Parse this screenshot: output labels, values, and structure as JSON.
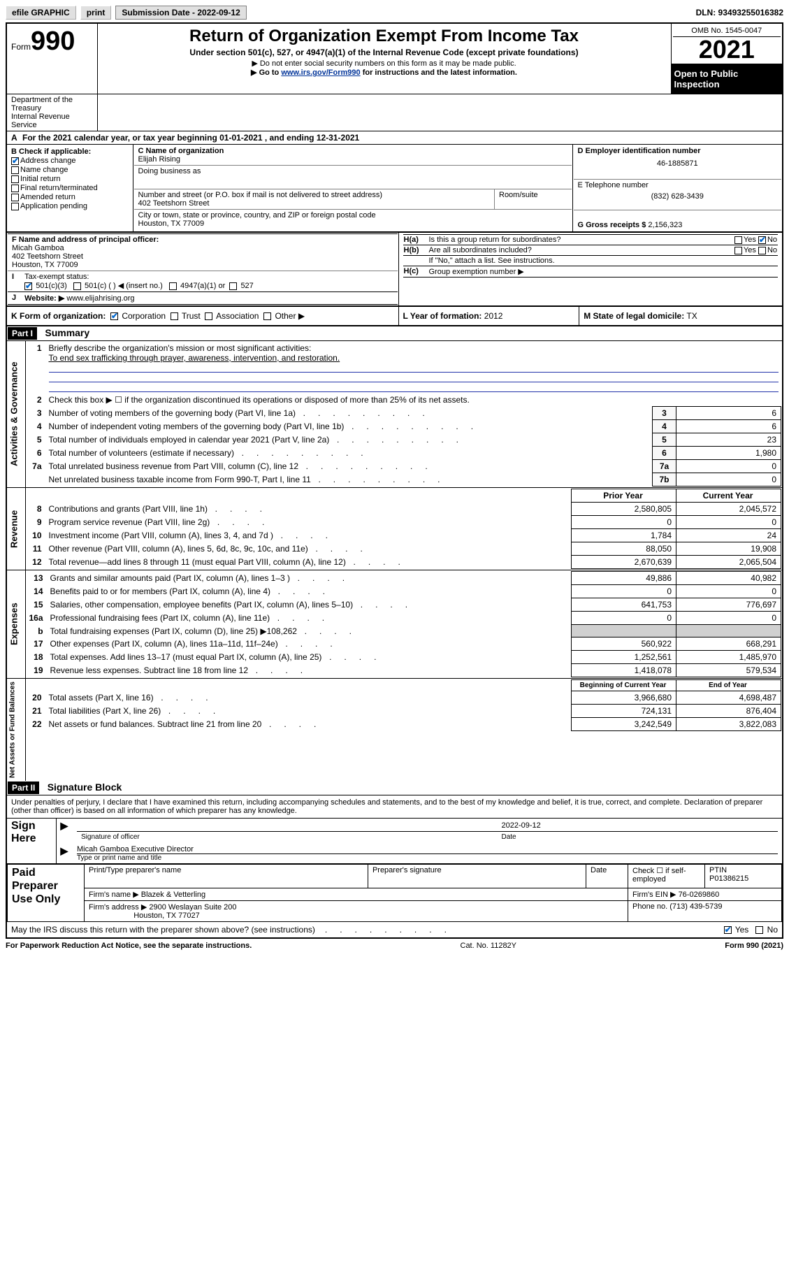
{
  "topbar": {
    "efile": "efile GRAPHIC",
    "print": "print",
    "subdate_label": "Submission Date - 2022-09-12",
    "dln": "DLN: 93493255016382"
  },
  "header": {
    "form_label": "Form",
    "form_num": "990",
    "title": "Return of Organization Exempt From Income Tax",
    "subtitle": "Under section 501(c), 527, or 4947(a)(1) of the Internal Revenue Code (except private foundations)",
    "note1": "▶ Do not enter social security numbers on this form as it may be made public.",
    "note2_pre": "▶ Go to ",
    "note2_link": "www.irs.gov/Form990",
    "note2_post": " for instructions and the latest information.",
    "dept": "Department of the Treasury\nInternal Revenue Service",
    "omb": "OMB No. 1545-0047",
    "year": "2021",
    "inspect": "Open to Public Inspection"
  },
  "rowA": "For the 2021 calendar year, or tax year beginning 01-01-2021    , and ending 12-31-2021",
  "B": {
    "hdr": "B Check if applicable:",
    "items": [
      {
        "label": "Address change",
        "checked": true
      },
      {
        "label": "Name change",
        "checked": false
      },
      {
        "label": "Initial return",
        "checked": false
      },
      {
        "label": "Final return/terminated",
        "checked": false
      },
      {
        "label": "Amended return",
        "checked": false
      },
      {
        "label": "Application pending",
        "checked": false
      }
    ]
  },
  "C": {
    "name_hdr": "C Name of organization",
    "name": "Elijah Rising",
    "dba_hdr": "Doing business as",
    "dba": "",
    "street_hdr": "Number and street (or P.O. box if mail is not delivered to street address)",
    "room_hdr": "Room/suite",
    "street": "402 Teetshorn Street",
    "city_hdr": "City or town, state or province, country, and ZIP or foreign postal code",
    "city": "Houston, TX  77009"
  },
  "D": {
    "hdr": "D Employer identification number",
    "val": "46-1885871"
  },
  "E": {
    "hdr": "E Telephone number",
    "val": "(832) 628-3439"
  },
  "G": {
    "hdr": "G Gross receipts $",
    "val": "2,156,323"
  },
  "F": {
    "hdr": "F  Name and address of principal officer:",
    "name": "Micah Gamboa",
    "street": "402 Teetshorn Street",
    "city": "Houston, TX  77009"
  },
  "H": {
    "a": "Is this a group return for subordinates?",
    "b": "Are all subordinates included?",
    "b_note": "If \"No,\" attach a list. See instructions.",
    "c": "Group exemption number ▶",
    "yes": "Yes",
    "no": "No"
  },
  "I": {
    "label": "Tax-exempt status:",
    "opts": [
      "501(c)(3)",
      "501(c) (  ) ◀ (insert no.)",
      "4947(a)(1) or",
      "527"
    ]
  },
  "J": {
    "label": "Website: ▶",
    "val": "www.elijahrising.org"
  },
  "K": {
    "label": "K Form of organization:",
    "opts": [
      "Corporation",
      "Trust",
      "Association",
      "Other ▶"
    ]
  },
  "L": {
    "label": "L Year of formation:",
    "val": "2012"
  },
  "M": {
    "label": "M State of legal domicile:",
    "val": "TX"
  },
  "part1": {
    "hdr": "Part I",
    "title": "Summary"
  },
  "summary": {
    "q1": "Briefly describe the organization's mission or most significant activities:",
    "mission": "To end sex trafficking through prayer, awareness, intervention, and restoration.",
    "q2": "Check this box ▶ ☐  if the organization discontinued its operations or disposed of more than 25% of its net assets.",
    "side1": "Activities & Governance",
    "side2": "Revenue",
    "side3": "Expenses",
    "side4": "Net Assets or Fund Balances",
    "rows_gov": [
      {
        "n": "3",
        "t": "Number of voting members of the governing body (Part VI, line 1a)",
        "box": "3",
        "v": "6"
      },
      {
        "n": "4",
        "t": "Number of independent voting members of the governing body (Part VI, line 1b)",
        "box": "4",
        "v": "6"
      },
      {
        "n": "5",
        "t": "Total number of individuals employed in calendar year 2021 (Part V, line 2a)",
        "box": "5",
        "v": "23"
      },
      {
        "n": "6",
        "t": "Total number of volunteers (estimate if necessary)",
        "box": "6",
        "v": "1,980"
      },
      {
        "n": "7a",
        "t": "Total unrelated business revenue from Part VIII, column (C), line 12",
        "box": "7a",
        "v": "0"
      },
      {
        "n": "",
        "t": "Net unrelated business taxable income from Form 990-T, Part I, line 11",
        "box": "7b",
        "v": "0"
      }
    ],
    "col_prior": "Prior Year",
    "col_current": "Current Year",
    "rows_rev": [
      {
        "n": "8",
        "t": "Contributions and grants (Part VIII, line 1h)",
        "p": "2,580,805",
        "c": "2,045,572"
      },
      {
        "n": "9",
        "t": "Program service revenue (Part VIII, line 2g)",
        "p": "0",
        "c": "0"
      },
      {
        "n": "10",
        "t": "Investment income (Part VIII, column (A), lines 3, 4, and 7d )",
        "p": "1,784",
        "c": "24"
      },
      {
        "n": "11",
        "t": "Other revenue (Part VIII, column (A), lines 5, 6d, 8c, 9c, 10c, and 11e)",
        "p": "88,050",
        "c": "19,908"
      },
      {
        "n": "12",
        "t": "Total revenue—add lines 8 through 11 (must equal Part VIII, column (A), line 12)",
        "p": "2,670,639",
        "c": "2,065,504"
      }
    ],
    "rows_exp": [
      {
        "n": "13",
        "t": "Grants and similar amounts paid (Part IX, column (A), lines 1–3 )",
        "p": "49,886",
        "c": "40,982"
      },
      {
        "n": "14",
        "t": "Benefits paid to or for members (Part IX, column (A), line 4)",
        "p": "0",
        "c": "0"
      },
      {
        "n": "15",
        "t": "Salaries, other compensation, employee benefits (Part IX, column (A), lines 5–10)",
        "p": "641,753",
        "c": "776,697"
      },
      {
        "n": "16a",
        "t": "Professional fundraising fees (Part IX, column (A), line 11e)",
        "p": "0",
        "c": "0"
      },
      {
        "n": "b",
        "t": "Total fundraising expenses (Part IX, column (D), line 25) ▶108,262",
        "p": "",
        "c": "",
        "shade": true
      },
      {
        "n": "17",
        "t": "Other expenses (Part IX, column (A), lines 11a–11d, 11f–24e)",
        "p": "560,922",
        "c": "668,291"
      },
      {
        "n": "18",
        "t": "Total expenses. Add lines 13–17 (must equal Part IX, column (A), line 25)",
        "p": "1,252,561",
        "c": "1,485,970"
      },
      {
        "n": "19",
        "t": "Revenue less expenses. Subtract line 18 from line 12",
        "p": "1,418,078",
        "c": "579,534"
      }
    ],
    "col_begin": "Beginning of Current Year",
    "col_end": "End of Year",
    "rows_net": [
      {
        "n": "20",
        "t": "Total assets (Part X, line 16)",
        "p": "3,966,680",
        "c": "4,698,487"
      },
      {
        "n": "21",
        "t": "Total liabilities (Part X, line 26)",
        "p": "724,131",
        "c": "876,404"
      },
      {
        "n": "22",
        "t": "Net assets or fund balances. Subtract line 21 from line 20",
        "p": "3,242,549",
        "c": "3,822,083"
      }
    ]
  },
  "part2": {
    "hdr": "Part II",
    "title": "Signature Block"
  },
  "penalty": "Under penalties of perjury, I declare that I have examined this return, including accompanying schedules and statements, and to the best of my knowledge and belief, it is true, correct, and complete. Declaration of preparer (other than officer) is based on all information of which preparer has any knowledge.",
  "sign": {
    "here": "Sign Here",
    "sig_officer": "Signature of officer",
    "date": "Date",
    "date_val": "2022-09-12",
    "name_title": "Micah Gamboa  Executive Director",
    "type_name": "Type or print name and title"
  },
  "prep": {
    "left": "Paid Preparer Use Only",
    "col1": "Print/Type preparer's name",
    "col2": "Preparer's signature",
    "col3": "Date",
    "col4_chk": "Check ☐  if self-employed",
    "col5": "PTIN",
    "ptin": "P01386215",
    "firm_name_l": "Firm's name      ▶",
    "firm_name": "Blazek & Vetterling",
    "firm_ein_l": "Firm's EIN ▶",
    "firm_ein": "76-0269860",
    "firm_addr_l": "Firm's address ▶",
    "firm_addr1": "2900 Weslayan Suite 200",
    "firm_addr2": "Houston, TX  77027",
    "phone_l": "Phone no.",
    "phone": "(713) 439-5739"
  },
  "discuss": {
    "q": "May the IRS discuss this return with the preparer shown above? (see instructions)",
    "yes": "Yes",
    "no": "No"
  },
  "footer": {
    "l": "For Paperwork Reduction Act Notice, see the separate instructions.",
    "m": "Cat. No. 11282Y",
    "r": "Form 990 (2021)"
  }
}
